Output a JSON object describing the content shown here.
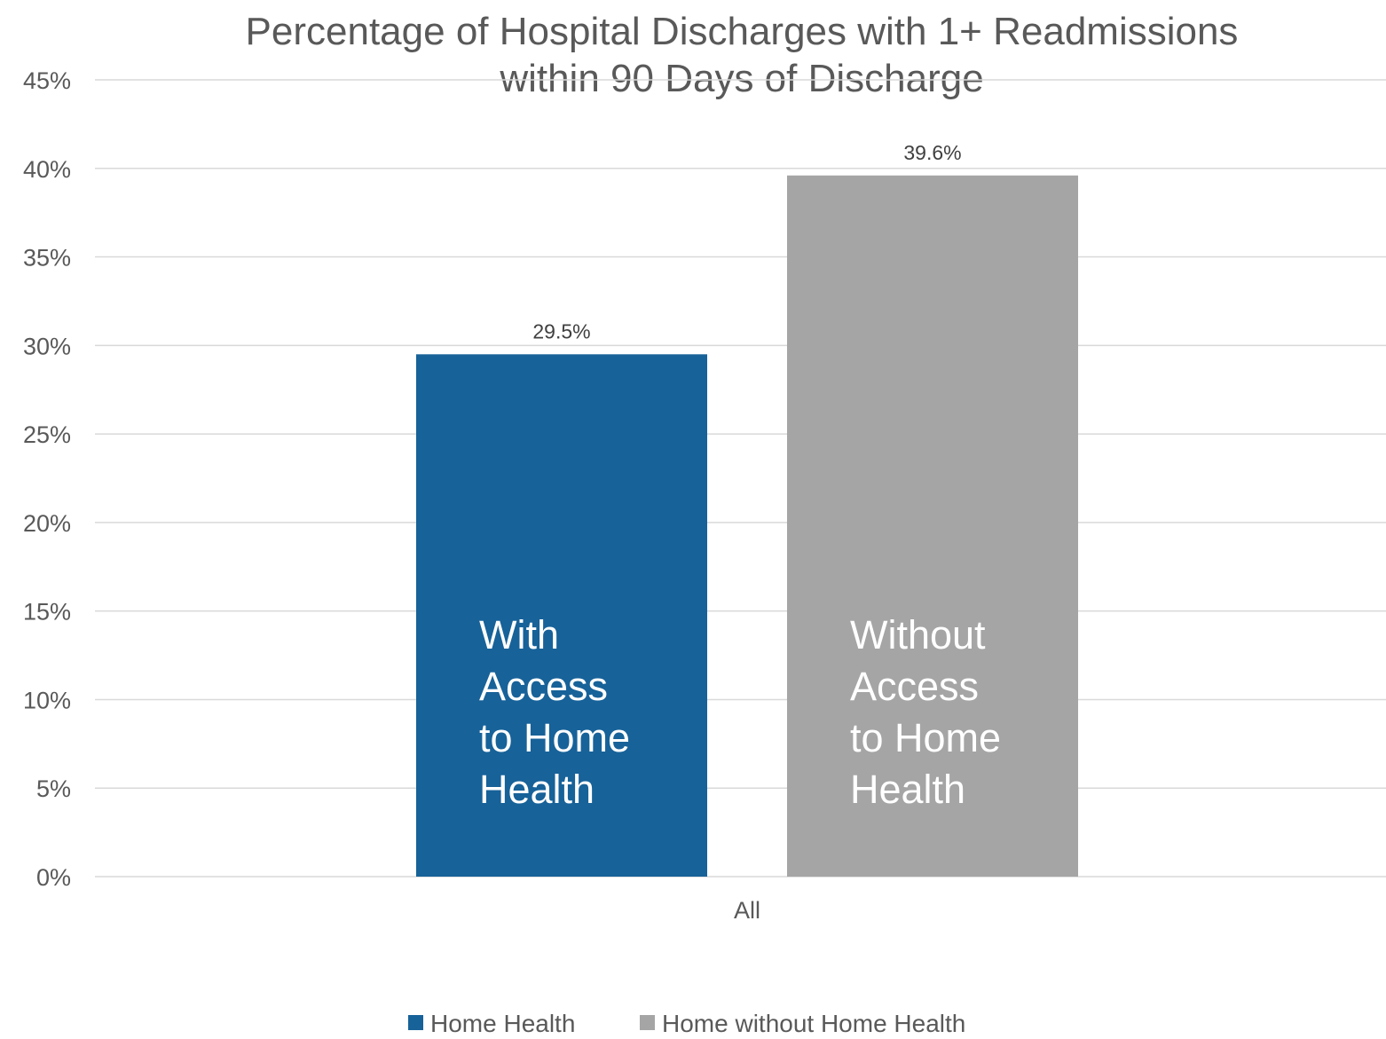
{
  "chart_data": {
    "type": "bar",
    "title": [
      "Percentage of Hospital Discharges with 1+ Readmissions",
      "within 90 Days of Discharge"
    ],
    "categories": [
      "All"
    ],
    "series": [
      {
        "name": "Home Health",
        "values": [
          29.5
        ],
        "color": "#176299",
        "data_label": "29.5%",
        "bar_text": [
          "With",
          "Access",
          "to Home",
          "Health"
        ]
      },
      {
        "name": "Home without Home Health",
        "values": [
          39.6
        ],
        "color": "#a5a5a5",
        "data_label": "39.6%",
        "bar_text": [
          "Without",
          "Access",
          "to Home",
          "Health"
        ]
      }
    ],
    "y_ticks": [
      "0%",
      "5%",
      "10%",
      "15%",
      "20%",
      "25%",
      "30%",
      "35%",
      "40%",
      "45%"
    ],
    "ylim": [
      0,
      45
    ],
    "y_tick_step": 5,
    "grid": true,
    "legend_position": "bottom"
  }
}
